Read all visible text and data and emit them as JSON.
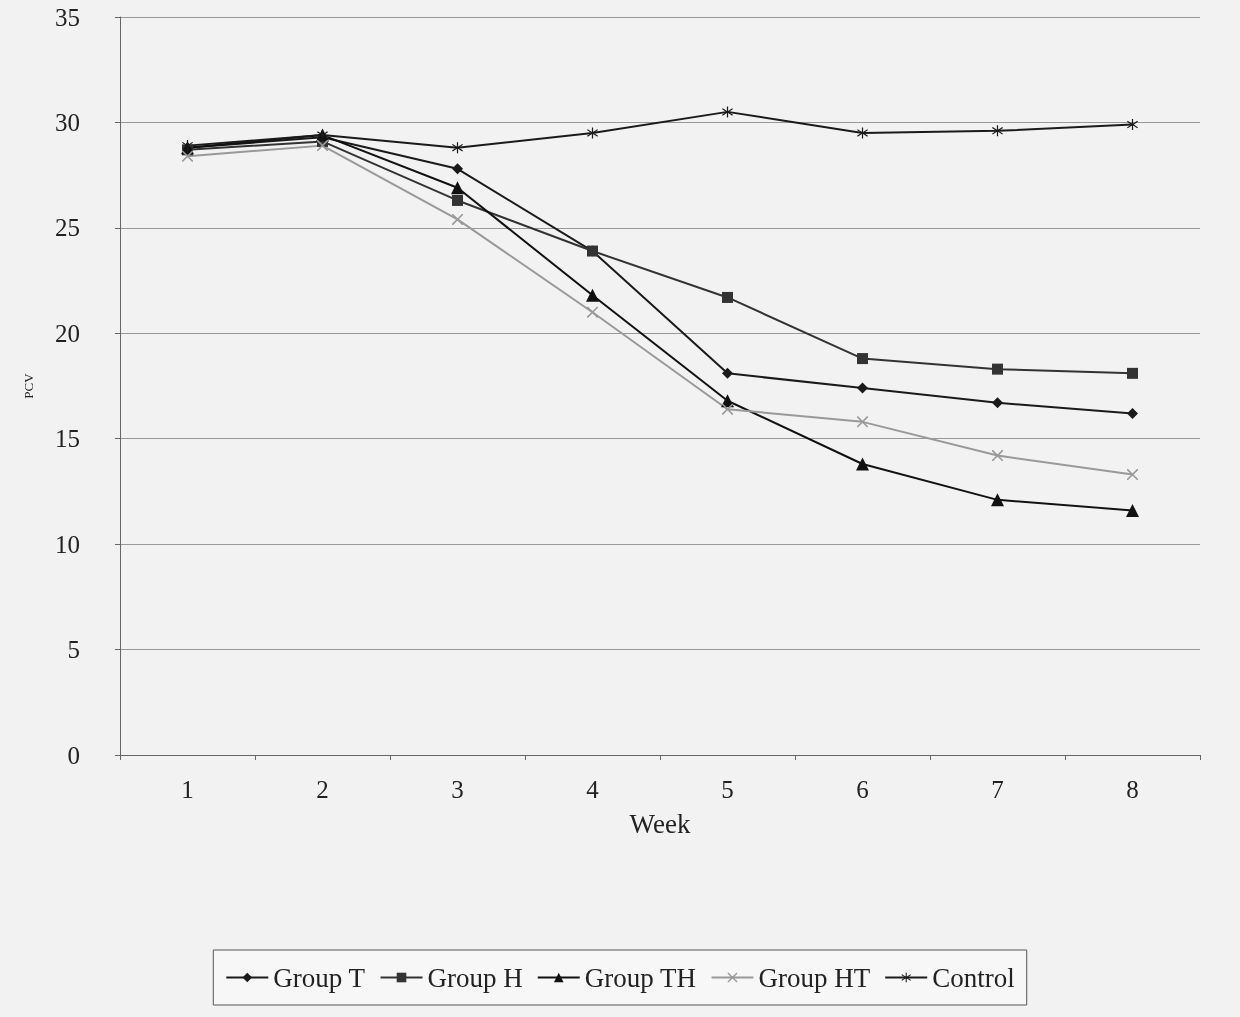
{
  "chart_data": {
    "type": "line",
    "xlabel": "Week",
    "ylabel": "PCV",
    "categories": [
      "1",
      "2",
      "3",
      "4",
      "5",
      "6",
      "7",
      "8"
    ],
    "ylim": [
      0,
      35
    ],
    "yticks": [
      0,
      5,
      10,
      15,
      20,
      25,
      30,
      35
    ],
    "grid": "y",
    "legend": "bottom",
    "line_style": "solid",
    "series": [
      {
        "name": "Group T",
        "color": "#1a1a1a",
        "marker": "diamond",
        "values": [
          28.8,
          29.3,
          27.8,
          23.9,
          18.1,
          17.4,
          16.7,
          16.2
        ]
      },
      {
        "name": "Group H",
        "color": "#333333",
        "marker": "square",
        "values": [
          28.7,
          29.1,
          26.3,
          23.9,
          21.7,
          18.8,
          18.3,
          18.1
        ]
      },
      {
        "name": "Group TH",
        "color": "#111111",
        "marker": "triangle",
        "values": [
          28.8,
          29.4,
          26.9,
          21.8,
          16.8,
          13.8,
          12.1,
          11.6
        ]
      },
      {
        "name": "Group HT",
        "color": "#999999",
        "marker": "cross",
        "values": [
          28.4,
          28.9,
          25.4,
          21.0,
          16.4,
          15.8,
          14.2,
          13.3
        ]
      },
      {
        "name": "Control",
        "color": "#1a1a1a",
        "marker": "star",
        "values": [
          28.9,
          29.4,
          28.8,
          29.5,
          30.5,
          29.5,
          29.6,
          29.9
        ]
      }
    ]
  }
}
